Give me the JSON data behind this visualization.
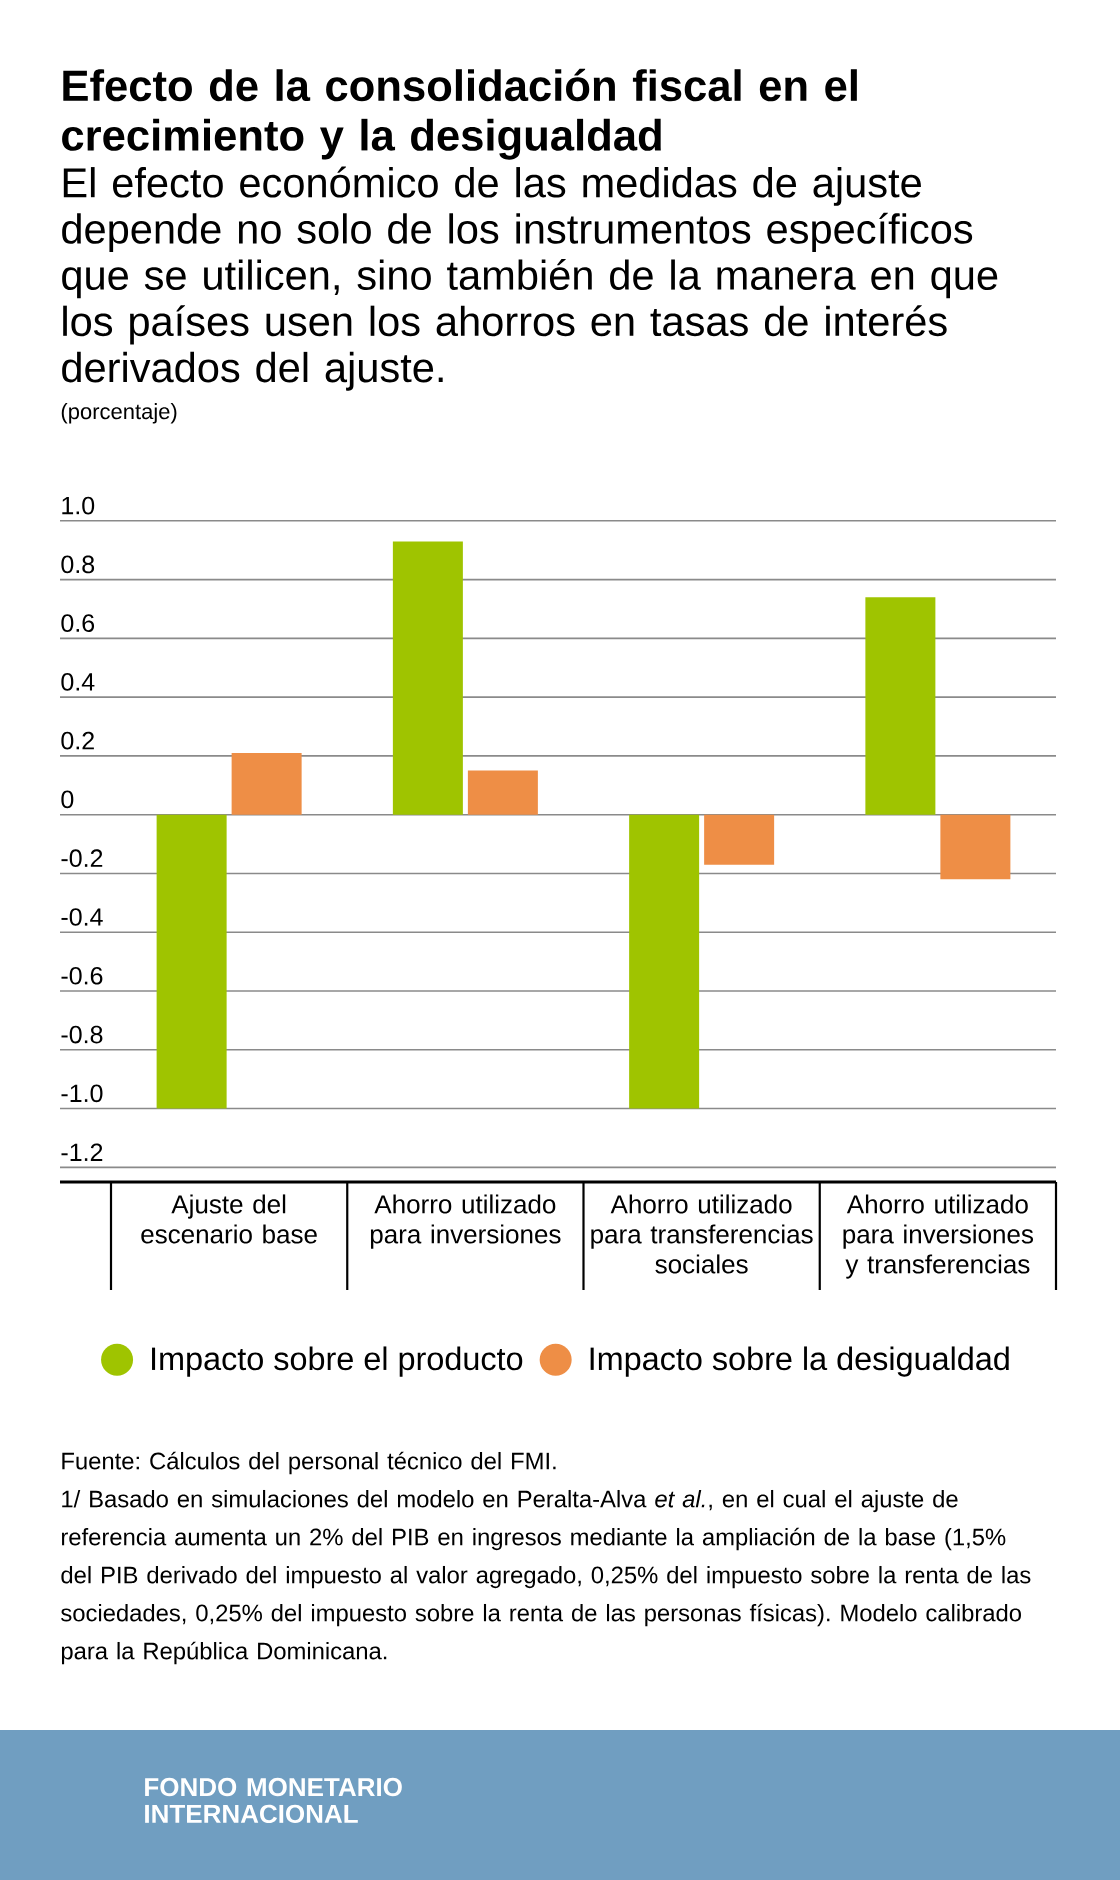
{
  "chart_data": {
    "type": "bar",
    "title": "Efecto de la consolidación fiscal en el crecimiento y la desigualdad",
    "subtitle": "El efecto económico de las medidas de ajuste depende no solo de los instrumentos específicos que se utilicen, sino también de la manera en que los países usen los ahorros en tasas de interés derivados del ajuste.",
    "ylabel": "(porcentaje)",
    "categories": [
      "Ajuste del escenario base",
      "Ahorro utilizado para inversiones",
      "Ahorro utilizado para transferencias sociales",
      "Ahorro utilizado para inversiones y transferencias"
    ],
    "series": [
      {
        "name": "Impacto sobre el producto",
        "color": "#9fc400",
        "values": [
          -1.0,
          0.93,
          -1.0,
          0.74
        ]
      },
      {
        "name": "Impacto sobre la desigualdad",
        "color": "#ee8e46",
        "values": [
          0.21,
          0.15,
          -0.17,
          -0.22
        ]
      }
    ],
    "ylim": [
      -1.25,
      1.0
    ],
    "yticks": [
      {
        "value": 1.0,
        "label": "1.0"
      },
      0.8,
      0.6,
      0.4,
      0.2,
      0,
      -0.2,
      -0.4,
      -0.6,
      -0.8,
      {
        "value": -1.0,
        "label": "-1.0"
      },
      -1.2
    ],
    "grid": "y",
    "legend": "bottom",
    "annotations": [
      "Fuente: Cálculos del personal técnico del FMI.",
      "1/ Basado en simulaciones del modelo en Peralta-Alva *et al.*, en el cual el ajuste de referencia aumenta un 2% del PIB en ingresos mediante la ampliación de la base (1,5% del PIB derivado del impuesto al valor agregado, 0,25% del impuesto sobre la renta de las sociedades, 0,25% del impuesto sobre la renta de las personas físicas). Modelo calibrado para la República Dominicana.",
      "FONDO MONETARIO INTERNACIONAL"
    ]
  }
}
